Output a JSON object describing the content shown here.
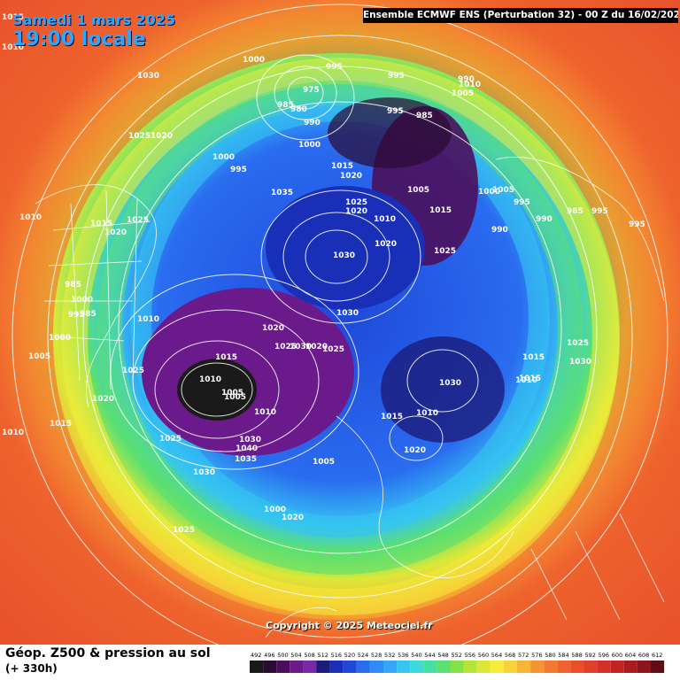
{
  "header": {
    "date_text": "Samedi 1 mars 2025",
    "time_text": "19:00 locale",
    "run_info": "Ensemble ECMWF ENS  (Perturbation 32)  -  00 Z du 16/02/2025"
  },
  "footer": {
    "variable": "Géop. Z500 & pression au sol",
    "lead_time": "(+ 330h)",
    "copyright": "Copyright © 2025 Meteociel.fr"
  },
  "legend": {
    "values": [
      "492",
      "496",
      "500",
      "504",
      "508",
      "512",
      "516",
      "520",
      "524",
      "528",
      "532",
      "536",
      "540",
      "544",
      "548",
      "552",
      "556",
      "560",
      "564",
      "568",
      "572",
      "576",
      "580",
      "584",
      "588",
      "592",
      "596",
      "600",
      "604",
      "608",
      "612"
    ],
    "colors": [
      "#1a1a1a",
      "#2b0a33",
      "#4a0f5c",
      "#6a1a8a",
      "#7a2aa8",
      "#1b1b7a",
      "#1a2fb8",
      "#1f48d8",
      "#2a6cf0",
      "#2f8cf5",
      "#33a8f7",
      "#36c4f2",
      "#3cdad8",
      "#46e0a0",
      "#5ce070",
      "#86e048",
      "#b4e43a",
      "#dce838",
      "#f6ec3a",
      "#f8d23a",
      "#f8b436",
      "#f69432",
      "#f27a30",
      "#ee632e",
      "#e8502c",
      "#e0402a",
      "#d43028",
      "#c02424",
      "#a81c20",
      "#8c141c",
      "#600c12"
    ]
  },
  "map_labels": {
    "pressure_lows": [
      "975",
      "980",
      "985",
      "990",
      "995",
      "1000",
      "1005",
      "1010"
    ],
    "pressure_highs": [
      "1015",
      "1020",
      "1025",
      "1030",
      "1035",
      "1040"
    ],
    "isobars": [
      {
        "t": "1015"
      },
      {
        "t": "1010"
      },
      {
        "t": "1030"
      },
      {
        "t": "1025"
      },
      {
        "t": "1020"
      },
      {
        "t": "1000"
      },
      {
        "t": "995"
      },
      {
        "t": "975"
      },
      {
        "t": "980"
      },
      {
        "t": "985"
      },
      {
        "t": "990"
      },
      {
        "t": "1000"
      },
      {
        "t": "995"
      },
      {
        "t": "995"
      },
      {
        "t": "985"
      },
      {
        "t": "990"
      },
      {
        "t": "1005"
      },
      {
        "t": "1010"
      },
      {
        "t": "1000"
      },
      {
        "t": "995"
      },
      {
        "t": "1015"
      },
      {
        "t": "1020"
      },
      {
        "t": "1025"
      },
      {
        "t": "1020"
      },
      {
        "t": "1010"
      },
      {
        "t": "1035"
      },
      {
        "t": "1030"
      },
      {
        "t": "1030"
      },
      {
        "t": "1025"
      },
      {
        "t": "1020"
      },
      {
        "t": "1015"
      },
      {
        "t": "1005"
      },
      {
        "t": "1010"
      },
      {
        "t": "1015"
      },
      {
        "t": "1020"
      },
      {
        "t": "1025"
      },
      {
        "t": "1000"
      },
      {
        "t": "1005"
      },
      {
        "t": "995"
      },
      {
        "t": "990"
      },
      {
        "t": "985"
      },
      {
        "t": "995"
      },
      {
        "t": "990"
      },
      {
        "t": "995"
      },
      {
        "t": "985"
      },
      {
        "t": "1000"
      },
      {
        "t": "995"
      },
      {
        "t": "985"
      },
      {
        "t": "1000"
      },
      {
        "t": "1005"
      },
      {
        "t": "1010"
      },
      {
        "t": "1020"
      },
      {
        "t": "1025"
      },
      {
        "t": "1030"
      },
      {
        "t": "1020"
      },
      {
        "t": "1025"
      },
      {
        "t": "1015"
      },
      {
        "t": "1010"
      },
      {
        "t": "1005"
      },
      {
        "t": "1005"
      },
      {
        "t": "1010"
      },
      {
        "t": "1025"
      },
      {
        "t": "1030"
      },
      {
        "t": "1040"
      },
      {
        "t": "1035"
      },
      {
        "t": "1030"
      },
      {
        "t": "1025"
      },
      {
        "t": "1020"
      },
      {
        "t": "1015"
      },
      {
        "t": "1010"
      },
      {
        "t": "1005"
      },
      {
        "t": "1000"
      },
      {
        "t": "1020"
      },
      {
        "t": "1025"
      },
      {
        "t": "1030"
      },
      {
        "t": "1015"
      },
      {
        "t": "1010"
      },
      {
        "t": "1020"
      },
      {
        "t": "1015"
      },
      {
        "t": "1010"
      },
      {
        "t": "1015"
      },
      {
        "t": "1025"
      },
      {
        "t": "1030"
      }
    ]
  },
  "colors": {
    "title": "#2aa8ff",
    "outer": "#ee632e",
    "core": "#1a1a1a"
  }
}
